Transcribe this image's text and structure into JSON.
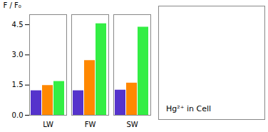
{
  "chart_data": {
    "type": "bar",
    "categories": [
      "LW",
      "FW",
      "SW"
    ],
    "series": [
      {
        "color": "#5533cc",
        "values": [
          1.22,
          1.22,
          1.25
        ]
      },
      {
        "color": "#ff8800",
        "values": [
          1.48,
          2.72,
          1.6
        ]
      },
      {
        "color": "#33ee44",
        "values": [
          1.68,
          4.55,
          4.38
        ]
      }
    ],
    "ylabel": "F / F₀",
    "ylim": [
      0,
      5.0
    ],
    "yticks": [
      {
        "value": 0.0,
        "label": "0.0"
      },
      1.5,
      {
        "value": 3.0,
        "label": "3.0"
      },
      4.5
    ],
    "annotations": [
      "Hg²⁺ in Cell"
    ]
  }
}
